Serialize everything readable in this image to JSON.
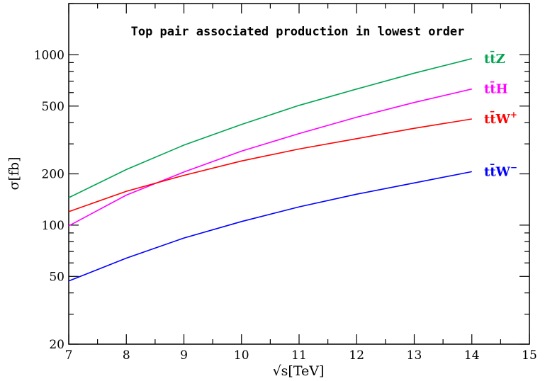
{
  "chart_data": {
    "type": "line",
    "title": "Top pair associated production in lowest order",
    "xlabel": "√s[TeV]",
    "ylabel": "σ[fb]",
    "xlim": [
      7,
      15
    ],
    "ylim": [
      20,
      2000
    ],
    "y_scale": "log",
    "grid": false,
    "x_ticks": [
      7,
      8,
      9,
      10,
      11,
      12,
      13,
      14,
      15
    ],
    "y_ticks": [
      20,
      50,
      100,
      200,
      500,
      1000
    ],
    "x": [
      7,
      8,
      9,
      10,
      11,
      12,
      13,
      14
    ],
    "series": [
      {
        "name": "tt̄Z",
        "label_base": "tt̄Z",
        "label_sup": "",
        "color": "#00a550",
        "values": [
          145,
          212,
          295,
          390,
          505,
          630,
          780,
          950
        ]
      },
      {
        "name": "tt̄H",
        "label_base": "tt̄H",
        "label_sup": "",
        "color": "#ff00ff",
        "values": [
          99,
          150,
          205,
          272,
          345,
          430,
          525,
          630
        ]
      },
      {
        "name": "tt̄W⁺",
        "label_base": "tt̄W",
        "label_sup": "+",
        "color": "#ff0000",
        "values": [
          120,
          158,
          196,
          238,
          280,
          322,
          370,
          420
        ]
      },
      {
        "name": "tt̄W⁻",
        "label_base": "tt̄W",
        "label_sup": "−",
        "color": "#0000ff",
        "values": [
          47,
          64,
          84,
          105,
          128,
          152,
          177,
          206
        ]
      }
    ]
  }
}
